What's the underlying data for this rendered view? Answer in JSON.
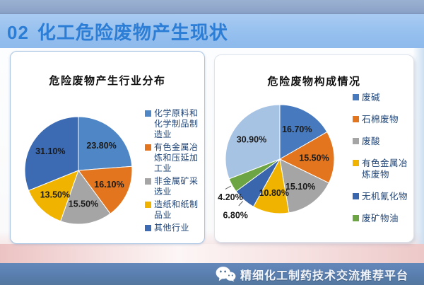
{
  "header": {
    "number": "02",
    "title": "化工危险废物产生现状"
  },
  "chart_data": [
    {
      "type": "pie",
      "title": "危险废物产生行业分布",
      "legend_position": "right",
      "slices": [
        {
          "label": "化学原料和化学制品制造业",
          "value": 23.8,
          "display": "23.80%",
          "color": "#4e86c6"
        },
        {
          "label": "有色金属冶炼和压延加工业",
          "value": 16.1,
          "display": "16.10%",
          "color": "#e2751d"
        },
        {
          "label": "非金属矿采选业",
          "value": 15.5,
          "display": "15.50%",
          "color": "#a5a5a5"
        },
        {
          "label": "造纸和纸制品业",
          "value": 13.5,
          "display": "13.50%",
          "color": "#f0b400"
        },
        {
          "label": "其他行业",
          "value": 31.1,
          "display": "31.10%",
          "color": "#3c6bb4"
        }
      ]
    },
    {
      "type": "pie",
      "title": "危险废物构成情况",
      "legend_position": "right",
      "slices": [
        {
          "label": "废碱",
          "value": 16.7,
          "display": "16.70%",
          "color": "#4679bd"
        },
        {
          "label": "石棉废物",
          "value": 15.5,
          "display": "15.50%",
          "color": "#e2751d"
        },
        {
          "label": "废酸",
          "value": 15.1,
          "display": "15.10%",
          "color": "#a5a5a5"
        },
        {
          "label": "有色金属冶炼废物",
          "value": 10.8,
          "display": "10.80%",
          "color": "#f0b400"
        },
        {
          "label": "无机氰化物",
          "value": 6.8,
          "display": "6.80%",
          "color": "#3a66ae",
          "label_outside": true
        },
        {
          "label": "废矿物油",
          "value": 4.2,
          "display": "4.20%",
          "color": "#6da544",
          "label_outside": true
        },
        {
          "label": "",
          "value": 30.9,
          "display": "30.90%",
          "color": "#a7c3e4",
          "in_legend": false
        }
      ]
    }
  ],
  "footer": {
    "platform": "精细化工制药技术交流推荐平台"
  },
  "colors": {
    "header_band": "#94bfee",
    "header_text": "#2b7dd5",
    "top_strip": "#8ca3c8",
    "footer_bar": "#5b80b2",
    "legend_text": "#1f4477"
  }
}
